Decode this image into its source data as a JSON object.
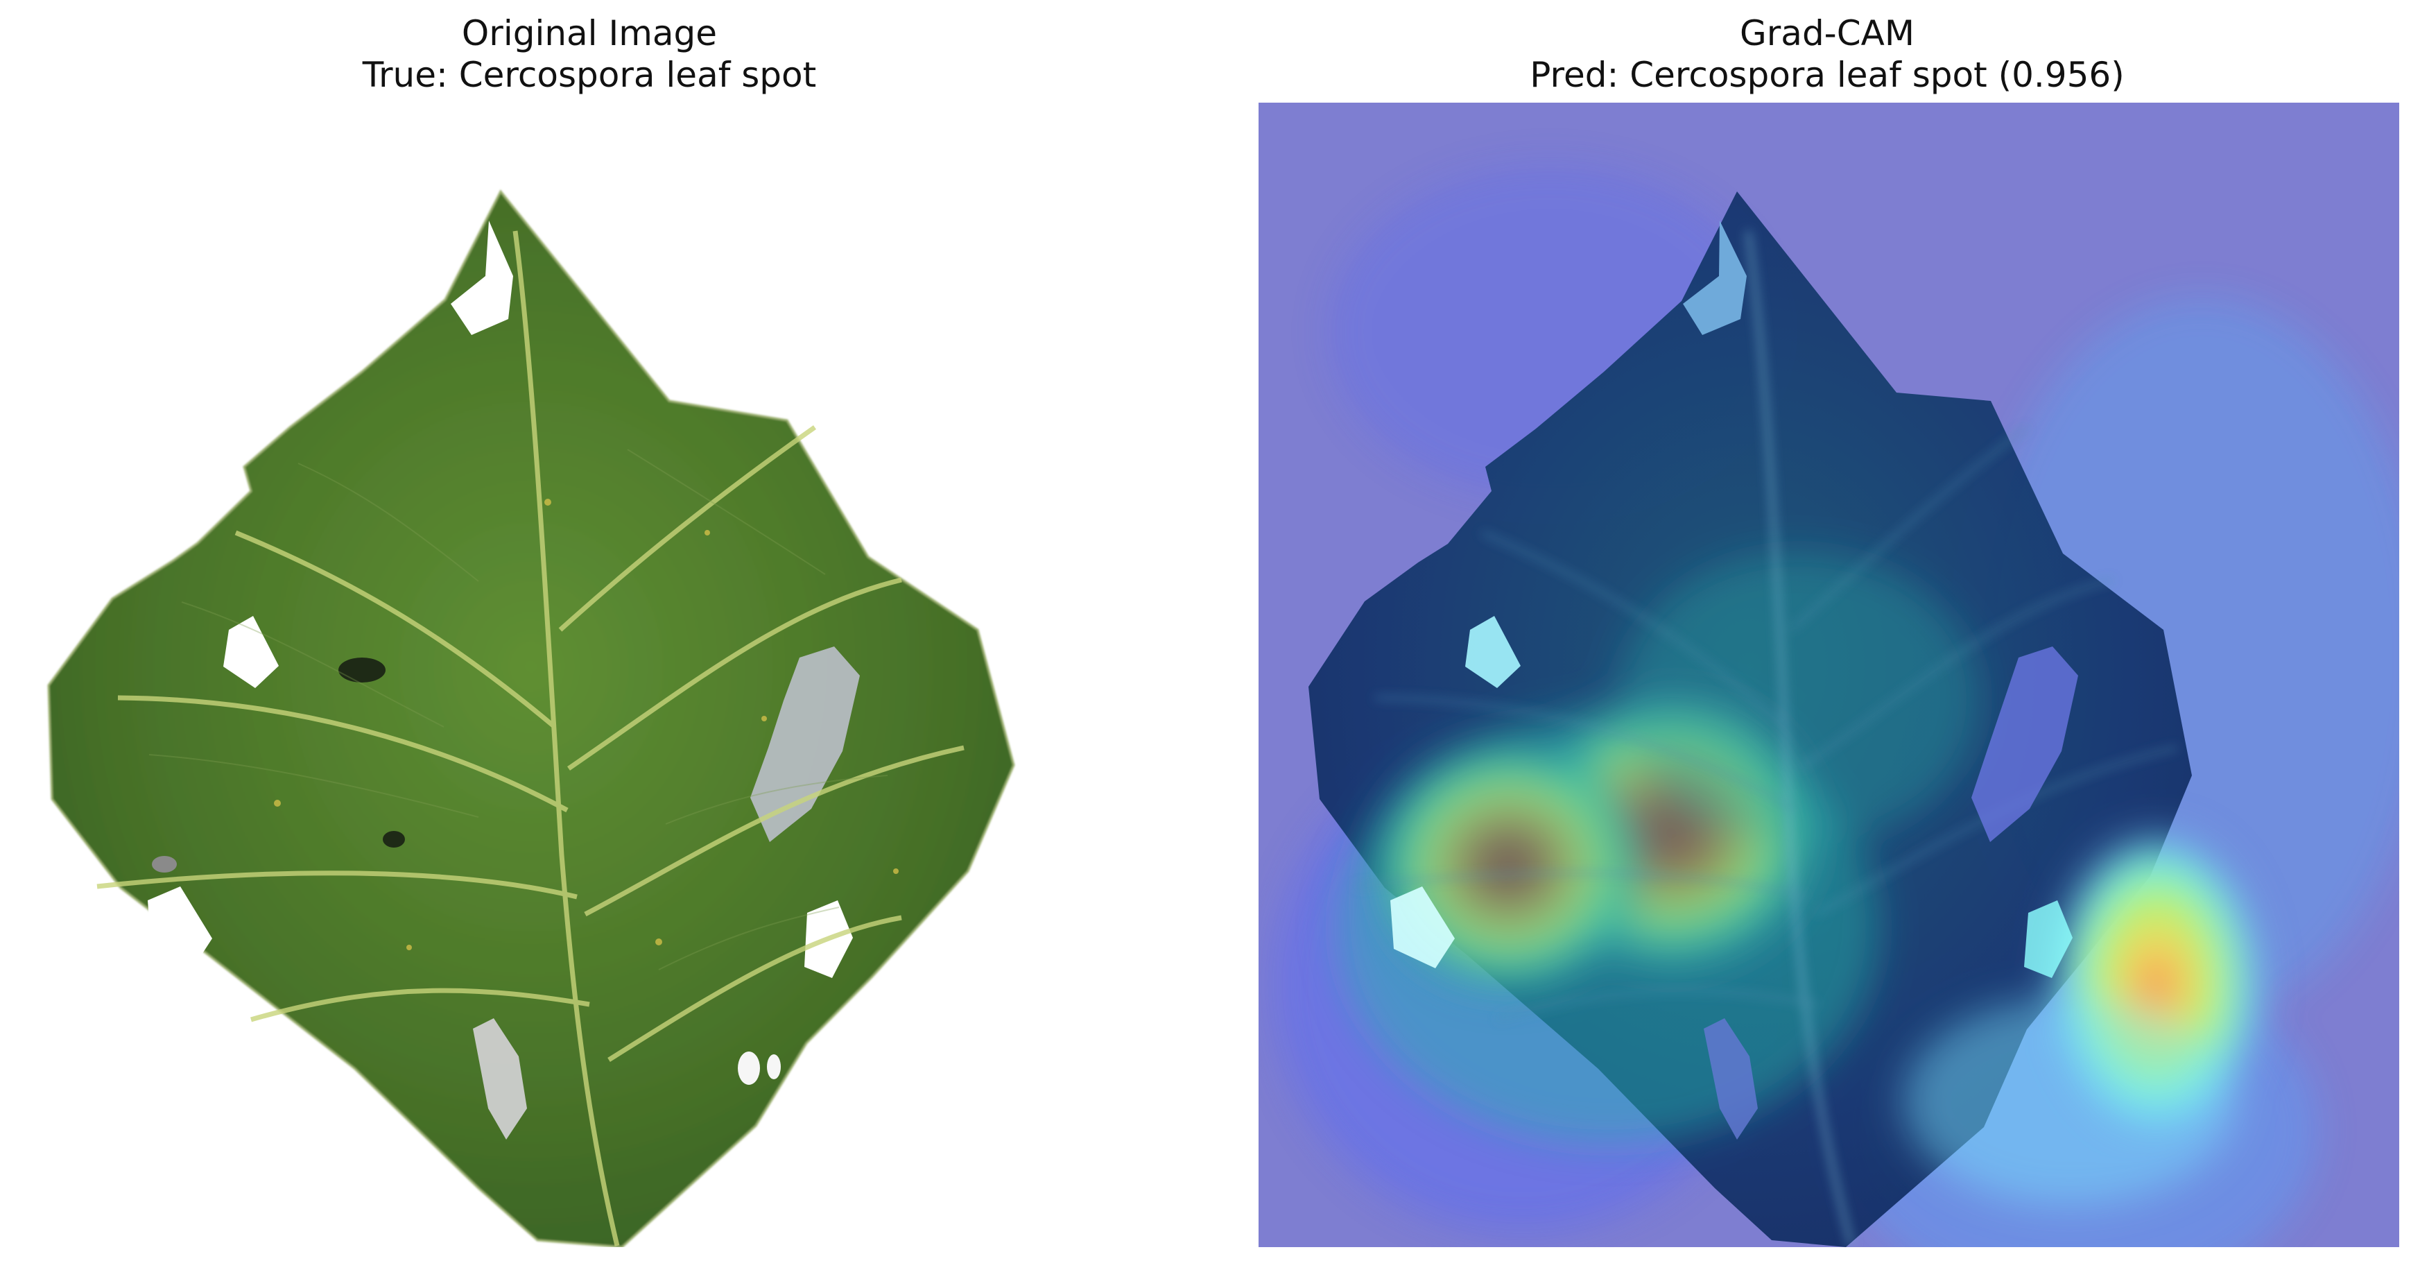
{
  "left_panel": {
    "title_line1": "Original Image",
    "title_line2": "True: Cercospora leaf spot",
    "subject": "leaf-icon",
    "background_color": "#ffffff",
    "leaf_color": "#4f7f2c",
    "vein_color": "#c8d47b"
  },
  "right_panel": {
    "title_line1": "Grad-CAM",
    "title_line2": "Pred: Cercospora leaf spot (0.956)",
    "overlay_color": "#7e7ed1",
    "heat_colors": [
      "#1f2b86",
      "#25bfa8",
      "#e9e24a",
      "#f07a25",
      "#b81f14"
    ]
  }
}
